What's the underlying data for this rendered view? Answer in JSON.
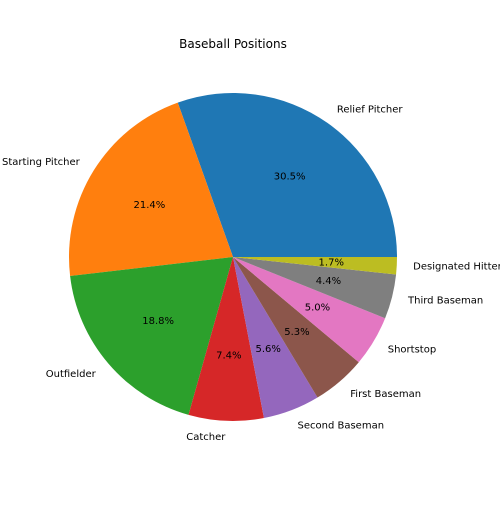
{
  "chart_data": {
    "type": "pie",
    "title": "Baseball Positions",
    "start_angle_deg": 0,
    "direction": "counterclockwise",
    "label_format": "percent, 1 decimal",
    "slices": [
      {
        "label": "Relief Pitcher",
        "value": 30.5,
        "pct_label": "30.5%",
        "color": "#1f77b4"
      },
      {
        "label": "Starting Pitcher",
        "value": 21.4,
        "pct_label": "21.4%",
        "color": "#ff7f0e"
      },
      {
        "label": "Outfielder",
        "value": 18.8,
        "pct_label": "18.8%",
        "color": "#2ca02c"
      },
      {
        "label": "Catcher",
        "value": 7.4,
        "pct_label": "7.4%",
        "color": "#d62728"
      },
      {
        "label": "Second Baseman",
        "value": 5.6,
        "pct_label": "5.6%",
        "color": "#9467bd"
      },
      {
        "label": "First Baseman",
        "value": 5.3,
        "pct_label": "5.3%",
        "color": "#8c564b"
      },
      {
        "label": "Shortstop",
        "value": 5.0,
        "pct_label": "5.0%",
        "color": "#e377c2"
      },
      {
        "label": "Third Baseman",
        "value": 4.4,
        "pct_label": "4.4%",
        "color": "#7f7f7f"
      },
      {
        "label": "Designated Hitter",
        "value": 1.7,
        "pct_label": "1.7%",
        "color": "#bcbd22"
      }
    ]
  }
}
